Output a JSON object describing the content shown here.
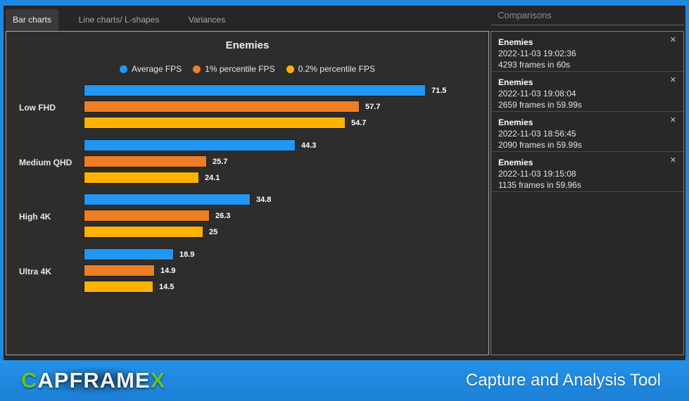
{
  "colors": {
    "accent_blue": "#1E88E0",
    "accent_green": "#63C32E"
  },
  "tabs": {
    "items": [
      {
        "label": "Bar charts",
        "active": true
      },
      {
        "label": "Line charts/ L-shapes",
        "active": false
      },
      {
        "label": "Variances",
        "active": false
      }
    ]
  },
  "chart_data": {
    "type": "bar",
    "orientation": "horizontal",
    "title": "Enemies",
    "categories": [
      "Low FHD",
      "Medium QHD",
      "High 4K",
      "Ultra 4K"
    ],
    "series": [
      {
        "name": "Average FPS",
        "color": "#2196F3",
        "values": [
          71.5,
          44.3,
          34.8,
          18.9
        ]
      },
      {
        "name": "1% percentile FPS",
        "color": "#EE7E23",
        "values": [
          57.7,
          25.7,
          26.3,
          14.9
        ]
      },
      {
        "name": "0.2% percentile FPS",
        "color": "#FFB300",
        "values": [
          54.7,
          24.1,
          25,
          14.5
        ]
      }
    ],
    "xlim": [
      0,
      72
    ],
    "value_labels": "end-of-bar",
    "legend_position": "top-center",
    "grid": false
  },
  "comparisons": {
    "header": "Comparisons",
    "close_icon": "✕",
    "items": [
      {
        "title": "Enemies",
        "date": "2022-11-03 19:02:36",
        "frames": "4293 frames in 60s"
      },
      {
        "title": "Enemies",
        "date": "2022-11-03 19:08:04",
        "frames": "2659 frames in 59.99s"
      },
      {
        "title": "Enemies",
        "date": "2022-11-03 18:56:45",
        "frames": "2090 frames in 59.99s"
      },
      {
        "title": "Enemies",
        "date": "2022-11-03 19:15:08",
        "frames": "1135 frames in 59.96s"
      }
    ]
  },
  "footer": {
    "logo": {
      "prefix": "C",
      "middle": "APFRAME",
      "suffix": "X"
    },
    "tagline": "Capture and Analysis Tool"
  }
}
